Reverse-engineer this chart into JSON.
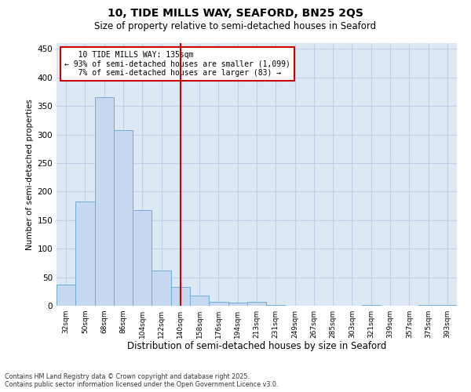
{
  "title_line1": "10, TIDE MILLS WAY, SEAFORD, BN25 2QS",
  "title_line2": "Size of property relative to semi-detached houses in Seaford",
  "xlabel": "Distribution of semi-detached houses by size in Seaford",
  "ylabel": "Number of semi-detached properties",
  "bar_labels": [
    "32sqm",
    "50sqm",
    "68sqm",
    "86sqm",
    "104sqm",
    "122sqm",
    "140sqm",
    "158sqm",
    "176sqm",
    "194sqm",
    "213sqm",
    "231sqm",
    "249sqm",
    "267sqm",
    "285sqm",
    "303sqm",
    "321sqm",
    "339sqm",
    "357sqm",
    "375sqm",
    "393sqm"
  ],
  "bar_values": [
    37,
    183,
    365,
    307,
    167,
    62,
    33,
    18,
    7,
    5,
    7,
    1,
    0,
    0,
    0,
    0,
    2,
    0,
    0,
    1,
    2
  ],
  "bar_color": "#c5d8f0",
  "bar_edge_color": "#6baed6",
  "property_label": "10 TIDE MILLS WAY: 135sqm",
  "pct_smaller": 93,
  "count_smaller": 1099,
  "pct_larger": 7,
  "count_larger": 83,
  "vline_color": "#cc0000",
  "vline_x_index": 6.0,
  "ylim": [
    0,
    460
  ],
  "yticks": [
    0,
    50,
    100,
    150,
    200,
    250,
    300,
    350,
    400,
    450
  ],
  "grid_color": "#c0d0e8",
  "background_color": "#dde8f5",
  "annotation_box_color": "#cc0000",
  "footer_line1": "Contains HM Land Registry data © Crown copyright and database right 2025.",
  "footer_line2": "Contains public sector information licensed under the Open Government Licence v3.0."
}
